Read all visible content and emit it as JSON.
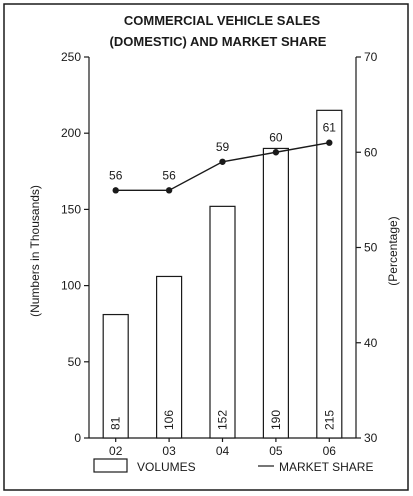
{
  "chart_data": {
    "type": "bar+line",
    "title_lines": [
      "COMMERCIAL VEHICLE SALES",
      "(DOMESTIC) AND MARKET SHARE"
    ],
    "categories": [
      "02",
      "03",
      "04",
      "05",
      "06"
    ],
    "series": [
      {
        "name": "VOLUMES",
        "type": "bar",
        "axis": "left",
        "values": [
          81,
          106,
          152,
          190,
          215
        ]
      },
      {
        "name": "MARKET SHARE",
        "type": "line",
        "axis": "right",
        "values": [
          56,
          56,
          59,
          60,
          61
        ]
      }
    ],
    "left_axis": {
      "label": "(Numbers in Thousands)",
      "range": [
        0,
        250
      ],
      "ticks": [
        0,
        50,
        100,
        150,
        200,
        250
      ]
    },
    "right_axis": {
      "label": "(Percentage)",
      "range": [
        30,
        70
      ],
      "ticks": [
        30,
        40,
        50,
        60,
        70
      ]
    },
    "grid": false,
    "legend_position": "bottom",
    "colors": {
      "ink": "#1a1a1a",
      "bar_fill": "#ffffff",
      "background": "#ffffff"
    }
  }
}
